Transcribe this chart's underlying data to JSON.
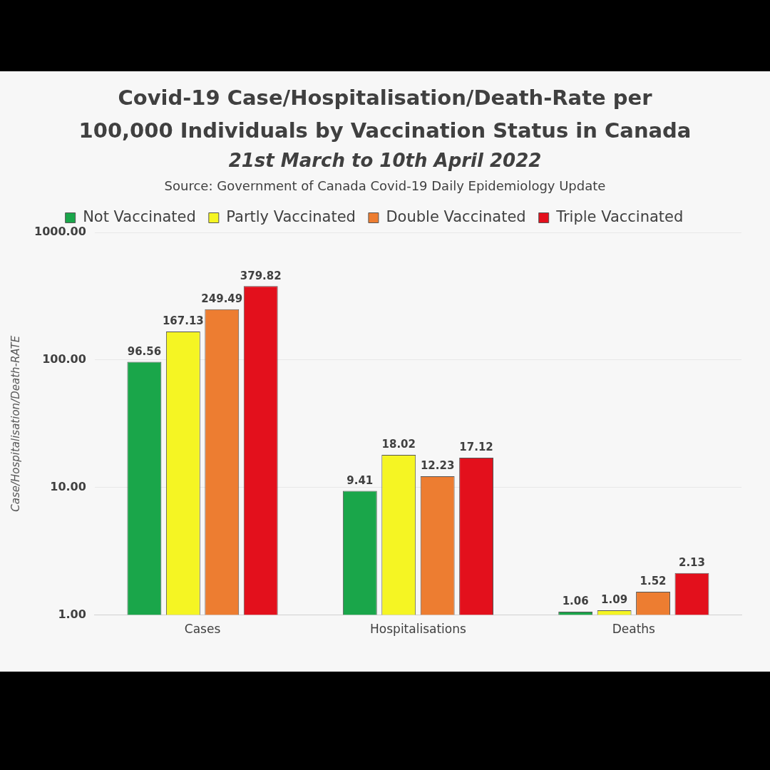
{
  "chart_data": {
    "type": "bar",
    "title": "Covid-19 Case/Hospitalisation/Death-Rate per 100,000 Individuals by Vaccination Status in Canada",
    "subtitle": "21st March to 10th April 2022",
    "annotations": [
      "Source: Government of Canada Covid-19 Daily Epidemiology Update"
    ],
    "ylabel": "Case/Hospitalisation/Death-RATE",
    "categories": [
      "Cases",
      "Hospitalisations",
      "Deaths"
    ],
    "series": [
      {
        "name": "Not Vaccinated",
        "color": "#1aa64a",
        "values": [
          96.56,
          9.41,
          1.06
        ]
      },
      {
        "name": "Partly Vaccinated",
        "color": "#f5f523",
        "values": [
          167.13,
          18.02,
          1.09
        ]
      },
      {
        "name": "Double Vaccinated",
        "color": "#ed7d31",
        "values": [
          249.49,
          12.23,
          1.52
        ]
      },
      {
        "name": "Triple Vaccinated",
        "color": "#e3101c",
        "values": [
          379.82,
          17.12,
          2.13
        ]
      }
    ],
    "log": "y",
    "ylim": [
      1,
      1000
    ],
    "yticks": [
      {
        "value": 1,
        "label": "1.00"
      },
      {
        "value": 10,
        "label": "10.00"
      },
      {
        "value": 100,
        "label": "100.00"
      },
      {
        "value": 1000,
        "label": "1000.00"
      }
    ],
    "grid": "y",
    "legend": "top",
    "data_labels": true
  }
}
